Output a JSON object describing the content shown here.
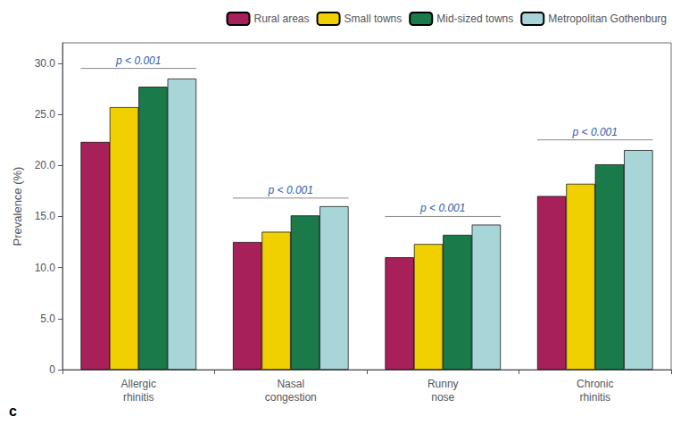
{
  "chart_data": {
    "type": "bar",
    "categories": [
      "Allergic\nrhinitis",
      "Nasal\ncongestion",
      "Runny\nnose",
      "Chronic\nrhinitis"
    ],
    "series": [
      {
        "name": "Rural areas",
        "color": "#A8205A",
        "values": [
          22.3,
          12.5,
          11.0,
          17.0
        ]
      },
      {
        "name": "Small towns",
        "color": "#F0D000",
        "values": [
          25.7,
          13.5,
          12.3,
          18.2
        ]
      },
      {
        "name": "Mid-sized towns",
        "color": "#1A7A4A",
        "values": [
          27.7,
          15.1,
          13.2,
          20.1
        ]
      },
      {
        "name": "Metropolitan Gothenburg",
        "color": "#A8D5D8",
        "values": [
          28.5,
          16.0,
          14.2,
          21.5
        ]
      }
    ],
    "ylabel": "Prevalence (%)",
    "ylim": [
      0,
      32
    ],
    "yticks": [
      0,
      {
        "value": 5,
        "label": "5.0"
      },
      {
        "value": 10,
        "label": "10.0"
      },
      {
        "value": 15,
        "label": "15.0"
      },
      {
        "value": 20,
        "label": "20.0"
      },
      {
        "value": 25,
        "label": "25.0"
      },
      {
        "value": 30,
        "label": "30.0"
      }
    ],
    "grid": false,
    "legend": "upper right",
    "annotations": [
      {
        "text": "p < 0.001",
        "category": "Allergic\nrhinitis",
        "y": 29.5
      },
      {
        "text": "p < 0.001",
        "category": "Nasal\ncongestion",
        "y": 16.8
      },
      {
        "text": "p < 0.001",
        "category": "Runny\nnose",
        "y": 15.0
      },
      {
        "text": "p < 0.001",
        "category": "Chronic\nrhinitis",
        "y": 22.5
      }
    ],
    "panel_label": "c"
  }
}
